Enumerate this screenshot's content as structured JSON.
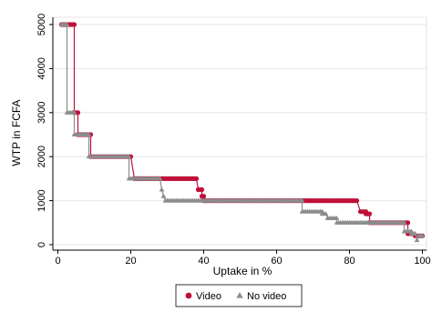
{
  "chart_data": {
    "type": "line",
    "xlabel": "Uptake in %",
    "ylabel": "WTP in FCFA",
    "xlim": [
      0,
      100
    ],
    "ylim": [
      0,
      5000
    ],
    "xticks": [
      0,
      20,
      40,
      60,
      80,
      100
    ],
    "yticks": [
      0,
      1000,
      2000,
      3000,
      4000,
      5000
    ],
    "grid": "horizontal",
    "legend": "bottom",
    "series": [
      {
        "name": "Video",
        "color": "#c0103a",
        "marker": "circle",
        "points": [
          [
            1,
            5000
          ],
          [
            4.5,
            5000
          ],
          [
            4.5,
            3000
          ],
          [
            5.5,
            3000
          ],
          [
            5.5,
            2500
          ],
          [
            9,
            2500
          ],
          [
            9,
            2000
          ],
          [
            20,
            2000
          ],
          [
            20,
            2000
          ],
          [
            21,
            1500
          ],
          [
            29,
            1500
          ],
          [
            38,
            1500
          ],
          [
            38.5,
            1250
          ],
          [
            39.5,
            1250
          ],
          [
            39.5,
            1100
          ],
          [
            40,
            1100
          ],
          [
            40,
            1000
          ],
          [
            67,
            1000
          ],
          [
            82,
            1000
          ],
          [
            83,
            750
          ],
          [
            84.5,
            750
          ],
          [
            84.5,
            700
          ],
          [
            85.5,
            700
          ],
          [
            85.5,
            500
          ],
          [
            96,
            500
          ],
          [
            96,
            250
          ],
          [
            97,
            250
          ],
          [
            98,
            200
          ],
          [
            100,
            200
          ]
        ]
      },
      {
        "name": "No video",
        "color": "#8c8c8c",
        "marker": "triangle",
        "points": [
          [
            1,
            5000
          ],
          [
            2.5,
            5000
          ],
          [
            2.5,
            3000
          ],
          [
            4.5,
            3000
          ],
          [
            4.5,
            2500
          ],
          [
            8.5,
            2500
          ],
          [
            8.5,
            2000
          ],
          [
            19.5,
            2000
          ],
          [
            19.5,
            1500
          ],
          [
            28,
            1500
          ],
          [
            28.5,
            1250
          ],
          [
            29,
            1100
          ],
          [
            29.5,
            1000
          ],
          [
            67,
            1000
          ],
          [
            67,
            750
          ],
          [
            72.5,
            750
          ],
          [
            72.5,
            700
          ],
          [
            73.5,
            700
          ],
          [
            74,
            600
          ],
          [
            76.5,
            600
          ],
          [
            76.5,
            500
          ],
          [
            95,
            500
          ],
          [
            95,
            300
          ],
          [
            97,
            300
          ],
          [
            97,
            250
          ],
          [
            98,
            250
          ],
          [
            98.5,
            100
          ],
          [
            99,
            200
          ],
          [
            100,
            200
          ]
        ]
      }
    ]
  }
}
